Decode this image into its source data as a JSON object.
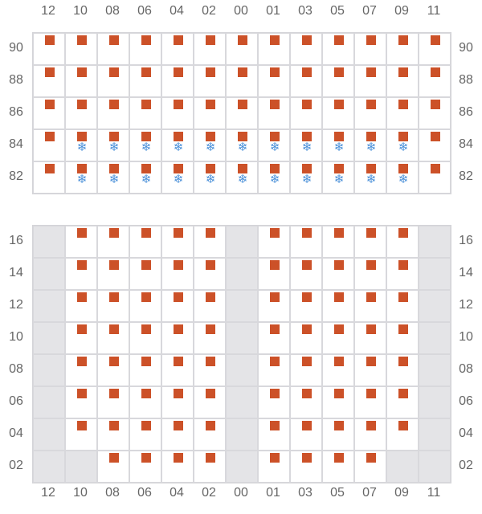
{
  "columns": [
    "12",
    "10",
    "08",
    "06",
    "04",
    "02",
    "00",
    "01",
    "03",
    "05",
    "07",
    "09",
    "11"
  ],
  "colors": {
    "marker": "#cc5128",
    "snowflake": "#4a90d9",
    "unavailable": "#e4e4e7"
  },
  "top_section": {
    "rows": [
      "90",
      "88",
      "86",
      "84",
      "82"
    ],
    "snowflake_rows": [
      "84",
      "82"
    ],
    "snowflake_columns": [
      "10",
      "08",
      "06",
      "04",
      "02",
      "00",
      "01",
      "03",
      "05",
      "07",
      "09"
    ],
    "unavailable_cells": []
  },
  "bottom_section": {
    "rows": [
      "16",
      "14",
      "12",
      "10",
      "08",
      "06",
      "04",
      "02"
    ],
    "unavailable_columns": [
      "12",
      "00",
      "11"
    ],
    "unavailable_cells": [
      {
        "row": "02",
        "col": "10"
      },
      {
        "row": "02",
        "col": "09"
      }
    ]
  }
}
